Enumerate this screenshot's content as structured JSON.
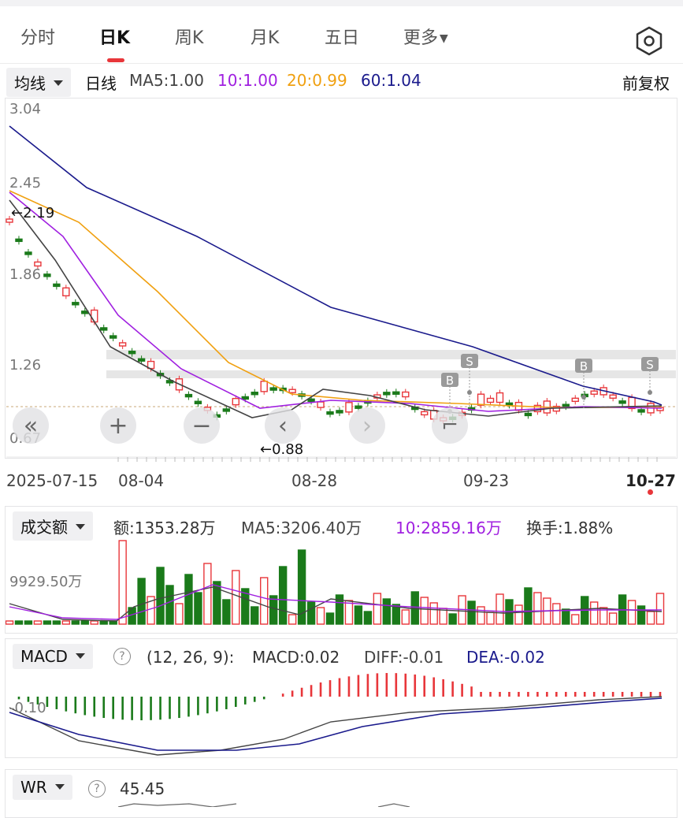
{
  "tabs": [
    {
      "label": "分时",
      "active": false
    },
    {
      "label": "日K",
      "active": true
    },
    {
      "label": "周K",
      "active": false
    },
    {
      "label": "月K",
      "active": false
    },
    {
      "label": "五日",
      "active": false
    },
    {
      "label": "更多",
      "active": false
    }
  ],
  "toolbar": {
    "indicator_dropdown": "均线",
    "period": "日线",
    "ma5": "MA5:1.00",
    "ma10": "10:1.00",
    "ma20": "20:0.99",
    "ma60": "60:1.04",
    "adjust": "前复权"
  },
  "colors": {
    "up": "#e8363a",
    "down": "#1a7a1a",
    "ma5": "#444444",
    "ma10": "#a020e0",
    "ma20": "#f0a010",
    "ma60": "#1a1a8c",
    "accent": "#e8363a"
  },
  "main_chart": {
    "y_labels": [
      "3.04",
      "2.45",
      "1.86",
      "1.26",
      "0.67"
    ],
    "max_marker": "←2.19",
    "min_marker": "←0.88",
    "x_labels": [
      "2025-07-15",
      "08-04",
      "08-28",
      "09-23",
      "10-27"
    ],
    "markers": [
      "S",
      "B",
      "B",
      "S"
    ]
  },
  "controls": [
    "«",
    "+",
    "−",
    "‹",
    "›",
    "⌐"
  ],
  "volume": {
    "dropdown": "成交额",
    "amount": "额:1353.28万",
    "ma5": "MA5:3206.40万",
    "ma10": "10:2859.16万",
    "turnover": "换手:1.88%",
    "y_label": "9929.50万"
  },
  "macd": {
    "dropdown": "MACD",
    "params": "(12, 26, 9):",
    "macd": "MACD:0.02",
    "diff": "DIFF:-0.01",
    "dea": "DEA:-0.02",
    "y_label": "-0.10"
  },
  "wr": {
    "dropdown": "WR",
    "value": "45.45"
  }
}
